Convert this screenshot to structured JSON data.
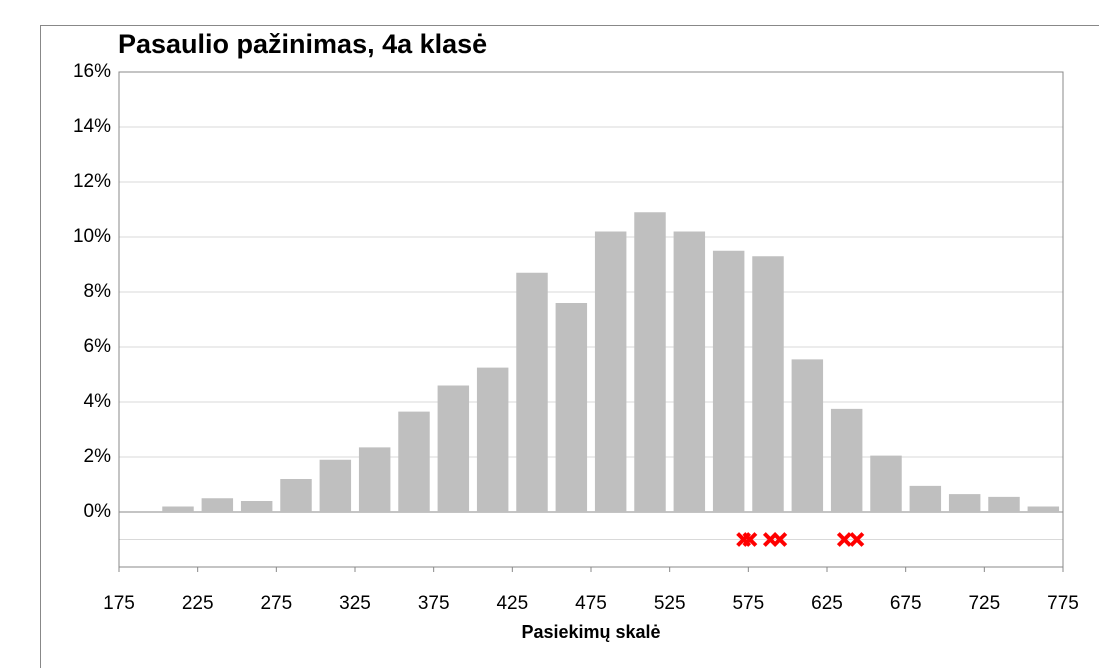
{
  "chart_data": {
    "type": "histogram",
    "title": "Pasaulio pažinimas, 4a klasė",
    "x_label": "Pasiekimų skalė",
    "bins": [
      200,
      225,
      250,
      275,
      300,
      325,
      350,
      375,
      400,
      425,
      450,
      475,
      500,
      525,
      550,
      575,
      600,
      625,
      650,
      675,
      700,
      725,
      750,
      775
    ],
    "values": [
      0.2,
      0.5,
      0.4,
      1.2,
      1.9,
      2.35,
      3.65,
      4.6,
      5.25,
      8.7,
      7.6,
      10.2,
      10.9,
      10.2,
      9.5,
      9.3,
      5.55,
      3.75,
      2.05,
      0.95,
      0.65,
      0.55,
      0.2
    ],
    "color": "#bfbfbf",
    "markers": {
      "x": [
        572,
        576,
        589,
        595,
        636,
        644
      ],
      "y": [
        -1,
        -1,
        -1,
        -1,
        -1,
        -1
      ],
      "color": "#ff0000"
    },
    "xlim": [
      175,
      775
    ],
    "xticks": [
      175,
      225,
      275,
      325,
      375,
      425,
      475,
      525,
      575,
      625,
      675,
      725,
      775
    ],
    "ylim": [
      -2,
      16
    ],
    "yticks": [
      {
        "value": 0,
        "label": "0%"
      },
      {
        "value": 2,
        "label": "2%"
      },
      {
        "value": 4,
        "label": "4%"
      },
      {
        "value": 6,
        "label": "6%"
      },
      {
        "value": 8,
        "label": "8%"
      },
      {
        "value": 10,
        "label": "10%"
      },
      {
        "value": 12,
        "label": "12%"
      },
      {
        "value": 14,
        "label": "14%"
      },
      {
        "value": 16,
        "label": "16%"
      }
    ],
    "grid": true
  }
}
